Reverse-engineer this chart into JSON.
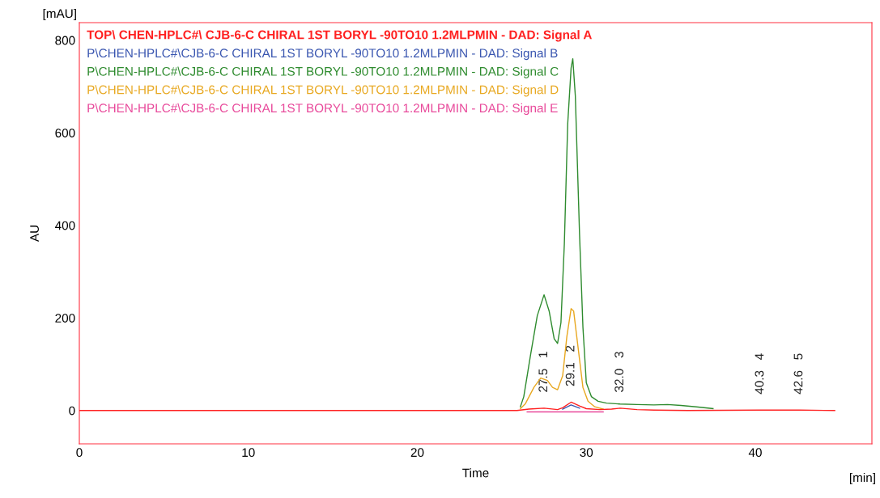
{
  "chart_data": {
    "type": "line",
    "xlabel": "Time",
    "ylabel": "AU",
    "xlim": [
      0,
      46.9
    ],
    "ylim": [
      -72,
      838
    ],
    "xticks": [
      0,
      10,
      20,
      30,
      40
    ],
    "yticks": [
      0,
      200,
      400,
      600,
      800
    ],
    "grid": false,
    "legend": "top left",
    "marker": "none",
    "line_style": "solid",
    "series": [
      {
        "name": "TOP\\ CHEN-HPLC#\\ CJB-6-C CHIRAL 1ST BORYL -90TO10 1.2MLPMIN - DAD: Signal A",
        "color": "#ff2020",
        "x": [
          0,
          25.9,
          26.6,
          27.5,
          28.3,
          28.6,
          29.1,
          29.6,
          30.0,
          30.8,
          31.5,
          32.0,
          33.0,
          34.0,
          36,
          40.3,
          42.6,
          44.7
        ],
        "values": [
          0,
          0,
          3,
          5,
          2,
          6,
          18,
          10,
          4,
          2,
          3,
          5,
          2,
          1,
          0,
          1,
          1,
          0
        ]
      },
      {
        "name": "P\\CHEN-HPLC#\\CJB-6-C CHIRAL 1ST BORYL -90TO10 1.2MLPMIN - DAD: Signal B",
        "color": "#3a56b0",
        "x": [
          28.6,
          29.1,
          29.6
        ],
        "values": [
          3,
          12,
          5
        ]
      },
      {
        "name": "P\\CHEN-HPLC#\\CJB-6-C CHIRAL 1ST BORYL -90TO10 1.2MLPMIN - DAD: Signal C",
        "color": "#2e8b2e",
        "x": [
          26.1,
          26.3,
          26.7,
          27.1,
          27.5,
          27.8,
          28.1,
          28.3,
          28.5,
          28.7,
          28.9,
          29.1,
          29.2,
          29.35,
          29.6,
          29.8,
          30.0,
          30.3,
          30.7,
          31.2,
          32.0,
          33.0,
          34.0,
          34.8,
          35.6,
          36.5,
          37.5
        ],
        "values": [
          8,
          30,
          120,
          205,
          250,
          215,
          155,
          145,
          190,
          360,
          620,
          740,
          760,
          680,
          380,
          180,
          60,
          30,
          20,
          16,
          14,
          13,
          12,
          13,
          11,
          8,
          4
        ]
      },
      {
        "name": "P\\CHEN-HPLC#\\CJB-6-C CHIRAL 1ST BORYL -90TO10 1.2MLPMIN - DAD: Signal D",
        "color": "#e8a820",
        "x": [
          26.1,
          26.4,
          26.9,
          27.3,
          27.7,
          28.0,
          28.3,
          28.6,
          28.85,
          29.1,
          29.25,
          29.5,
          29.8,
          30.1,
          30.5,
          31.0
        ],
        "values": [
          4,
          15,
          50,
          70,
          65,
          50,
          45,
          75,
          160,
          220,
          215,
          140,
          50,
          20,
          8,
          3
        ]
      },
      {
        "name": "P\\CHEN-HPLC#\\CJB-6-C CHIRAL 1ST BORYL -90TO10 1.2MLPMIN - DAD: Signal E",
        "color": "#e8489a",
        "x": [
          26.5,
          27.5,
          29.1,
          31.0
        ],
        "values": [
          -3,
          -3,
          -3,
          -3
        ]
      }
    ],
    "annotations": [
      "[mAU]",
      "[min]",
      {
        "text": "27.5   1",
        "x": 27.5,
        "y": 5
      },
      {
        "text": "29.1   2",
        "x": 29.1,
        "y": 18
      },
      {
        "text": "32.0   3",
        "x": 32.0,
        "y": 5
      },
      {
        "text": "40.3   4",
        "x": 40.3,
        "y": 1
      },
      {
        "text": "42.6   5",
        "x": 42.6,
        "y": 1
      }
    ]
  }
}
